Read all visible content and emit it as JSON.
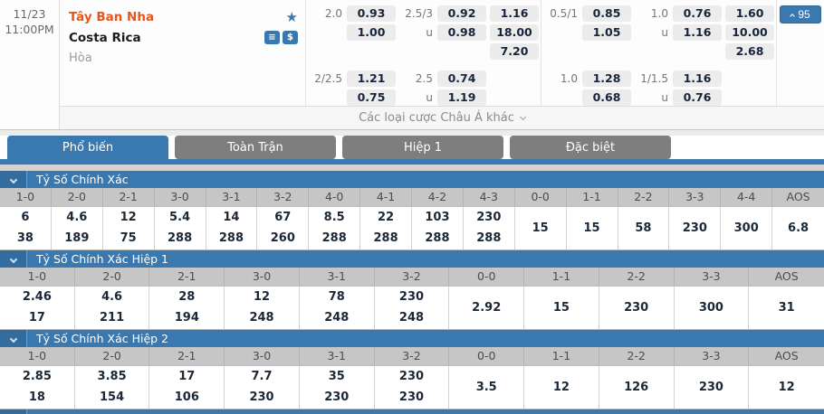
{
  "colors": {
    "accent_blue": "#3a79b0",
    "inactive_tab_gray": "#7e7e7e",
    "home_team_orange": "#e2571e",
    "column_header_gray": "#c6c6c6",
    "odds_value_dark": "#1b2838"
  },
  "match": {
    "date": "11/23",
    "time": "11:00PM",
    "home_team": "Tây Ban Nha",
    "away_team": "Costa Rica",
    "draw_label": "Hòa",
    "markets_count": "95",
    "more_bets_label": "Các loại cược Châu Á khác",
    "icons": {
      "favorite": "star-icon",
      "coins": "coins-icon",
      "money": "dollar-icon"
    }
  },
  "odds_groups": [
    {
      "name": "full-time",
      "rows": [
        [
          "2.0",
          "0.93",
          "2.5/3",
          "0.92",
          "1.16"
        ],
        [
          "",
          "1.00",
          "u",
          "0.98",
          "18.00"
        ],
        [
          "",
          "",
          "",
          "",
          "7.20"
        ],
        [
          "2/2.5",
          "1.21",
          "2.5",
          "0.74",
          ""
        ],
        [
          "",
          "0.75",
          "u",
          "1.19",
          ""
        ]
      ]
    },
    {
      "name": "first-half",
      "rows": [
        [
          "0.5/1",
          "0.85",
          "1.0",
          "0.76",
          "1.60"
        ],
        [
          "",
          "1.05",
          "u",
          "1.16",
          "10.00"
        ],
        [
          "",
          "",
          "",
          "",
          "2.68"
        ],
        [
          "1.0",
          "1.28",
          "1/1.5",
          "1.16",
          ""
        ],
        [
          "",
          "0.68",
          "u",
          "0.76",
          ""
        ]
      ]
    }
  ],
  "tabs": [
    {
      "name": "popular",
      "label": "Phổ biến",
      "active": true
    },
    {
      "name": "full-match",
      "label": "Toàn Trận",
      "active": false
    },
    {
      "name": "first-half",
      "label": "Hiệp 1",
      "active": false
    },
    {
      "name": "special",
      "label": "Đặc biệt",
      "active": false
    }
  ],
  "sections": [
    {
      "title": "Tỷ Số Chính Xác",
      "columns": [
        "1-0",
        "2-0",
        "2-1",
        "3-0",
        "3-1",
        "3-2",
        "4-0",
        "4-1",
        "4-2",
        "4-3",
        "0-0",
        "1-1",
        "2-2",
        "3-3",
        "4-4",
        "AOS"
      ],
      "values": [
        [
          "6",
          "38"
        ],
        [
          "4.6",
          "189"
        ],
        [
          "12",
          "75"
        ],
        [
          "5.4",
          "288"
        ],
        [
          "14",
          "288"
        ],
        [
          "67",
          "260"
        ],
        [
          "8.5",
          "288"
        ],
        [
          "22",
          "288"
        ],
        [
          "103",
          "288"
        ],
        [
          "230",
          "288"
        ],
        [
          "15"
        ],
        [
          "15"
        ],
        [
          "58"
        ],
        [
          "230"
        ],
        [
          "300"
        ],
        [
          "6.8"
        ]
      ]
    },
    {
      "title": "Tỷ Số Chính Xác Hiệp 1",
      "columns": [
        "1-0",
        "2-0",
        "2-1",
        "3-0",
        "3-1",
        "3-2",
        "0-0",
        "1-1",
        "2-2",
        "3-3",
        "AOS"
      ],
      "values": [
        [
          "2.46",
          "17"
        ],
        [
          "4.6",
          "211"
        ],
        [
          "28",
          "194"
        ],
        [
          "12",
          "248"
        ],
        [
          "78",
          "248"
        ],
        [
          "230",
          "248"
        ],
        [
          "2.92"
        ],
        [
          "15"
        ],
        [
          "230"
        ],
        [
          "300"
        ],
        [
          "31"
        ]
      ]
    },
    {
      "title": "Tỷ Số Chính Xác Hiệp 2",
      "columns": [
        "1-0",
        "2-0",
        "2-1",
        "3-0",
        "3-1",
        "3-2",
        "0-0",
        "1-1",
        "2-2",
        "3-3",
        "AOS"
      ],
      "values": [
        [
          "2.85",
          "18"
        ],
        [
          "3.85",
          "154"
        ],
        [
          "17",
          "106"
        ],
        [
          "7.7",
          "230"
        ],
        [
          "35",
          "230"
        ],
        [
          "230",
          "230"
        ],
        [
          "3.5"
        ],
        [
          "12"
        ],
        [
          "126"
        ],
        [
          "230"
        ],
        [
          "12"
        ]
      ]
    },
    {
      "title": "",
      "columns": [],
      "values": []
    }
  ]
}
